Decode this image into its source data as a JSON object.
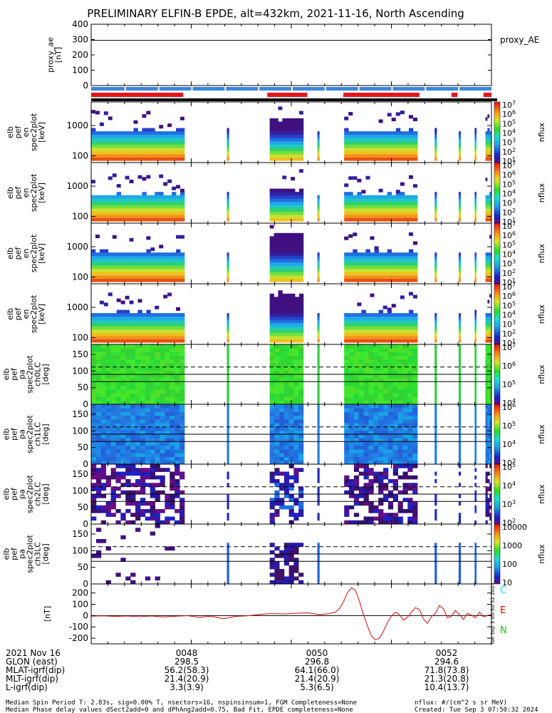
{
  "title": "PRELIMINARY ELFIN-B EPDE, alt=432km, 2021-11-16, North Ascending",
  "colors": {
    "red": "#e8141c",
    "blue": "#3a86d8",
    "black": "#000000",
    "trace": "#d42020"
  },
  "panels": [
    {
      "name": "proxy_ae",
      "ylabel": [
        "proxy_ae",
        "[nT]"
      ],
      "ticks": [
        "0",
        "100",
        "200",
        "300",
        "400"
      ],
      "right_label": "proxy_AE"
    },
    {
      "name": "en-1",
      "ylabel": [
        "elb",
        "pef",
        "en",
        "spec2plot",
        "[keV]"
      ],
      "ticks": [
        "100",
        "1000"
      ],
      "cb_label": "nflux",
      "cb_ticks": [
        "10^1",
        "10^2",
        "10^3",
        "10^4",
        "10^5",
        "10^6",
        "10^7"
      ]
    },
    {
      "name": "en-2",
      "ylabel": [
        "elb",
        "pef",
        "en",
        "spec2plot",
        "[keV]"
      ],
      "ticks": [
        "100",
        "1000"
      ],
      "cb_label": "nflux",
      "cb_ticks": [
        "10^1",
        "10^2",
        "10^3",
        "10^4",
        "10^5",
        "10^6",
        "10^7"
      ]
    },
    {
      "name": "en-3",
      "ylabel": [
        "elb",
        "pef",
        "en",
        "spec2plot",
        "[keV]"
      ],
      "ticks": [
        "100",
        "1000"
      ],
      "cb_label": "nflux",
      "cb_ticks": [
        "10^1",
        "10^2",
        "10^3",
        "10^4",
        "10^5",
        "10^6",
        "10^7"
      ]
    },
    {
      "name": "en-4",
      "ylabel": [
        "elb",
        "pef",
        "en",
        "spec2plot",
        "[keV]"
      ],
      "ticks": [
        "100",
        "1000"
      ],
      "cb_label": "nflux",
      "cb_ticks": [
        "10^1",
        "10^2",
        "10^3",
        "10^4",
        "10^5",
        "10^6",
        "10^7"
      ]
    },
    {
      "name": "pa-0",
      "ylabel": [
        "elb",
        "pef",
        "pa",
        "spec2plot",
        "ch0LC",
        "[deg]"
      ],
      "ticks": [
        "0",
        "50",
        "100",
        "150"
      ],
      "cb_label": "nflux",
      "cb_ticks": [
        "10^4",
        "10^5",
        "10^6",
        "10^7"
      ]
    },
    {
      "name": "pa-1",
      "ylabel": [
        "elb",
        "pef",
        "pa",
        "spec2plot",
        "ch1LC",
        "[deg]"
      ],
      "ticks": [
        "0",
        "50",
        "100",
        "150"
      ],
      "cb_label": "nflux",
      "cb_ticks": [
        "10^3",
        "10^4",
        "10^5",
        "10^6"
      ]
    },
    {
      "name": "pa-2",
      "ylabel": [
        "elb",
        "pef",
        "pa",
        "spec2plot",
        "ch2LC",
        "[deg]"
      ],
      "ticks": [
        "0",
        "50",
        "100",
        "150"
      ],
      "cb_label": "nflux",
      "cb_ticks": [
        "10^2",
        "10^3",
        "10^4",
        "10^5"
      ]
    },
    {
      "name": "pa-3",
      "ylabel": [
        "elb",
        "pef",
        "pa",
        "spec2plot",
        "ch3LC",
        "[deg]"
      ],
      "ticks": [
        "0",
        "50",
        "100",
        "150"
      ],
      "cb_label": "nflux",
      "cb_ticks": [
        "10",
        "100",
        "1000",
        "10000"
      ]
    },
    {
      "name": "mag",
      "ylabel": [
        "[nT]"
      ],
      "ticks": [
        "-200",
        "-100",
        "0",
        "100",
        "200"
      ],
      "side_letters": [
        "C",
        "E",
        "N"
      ],
      "side_colors": [
        "#00e5ff",
        "#e00000",
        "#00cc00"
      ],
      "stamp": "Tue Sep 3 00:50:32 2024"
    }
  ],
  "chart_data": {
    "type": "spectrogram-stack",
    "x_ticks": [
      "0048",
      "0050",
      "0052"
    ],
    "ephemeris": {
      "labels": [
        "2021 Nov 16",
        "GLON (east)",
        "MLAT-igrf(dip)",
        "MLT-igrf(dip)",
        "L-igrf(dip)"
      ],
      "columns": [
        [
          "0048",
          "298.5",
          "56.2(58.3)",
          "21.4(20.9)",
          "3.3(3.9)"
        ],
        [
          "0050",
          "296.8",
          "64.1(66.0)",
          "21.4(20.9)",
          "5.3(6.5)"
        ],
        [
          "0052",
          "294.6",
          "71.8(73.8)",
          "21.3(20.8)",
          "10.4(13.7)"
        ]
      ]
    },
    "proxy_ae_ylim": [
      0,
      400
    ],
    "proxy_ae_level": 295,
    "energy_ylim": [
      60,
      6000
    ],
    "pa_ylim": [
      0,
      180
    ],
    "pa_dashed": 112,
    "pa_solid": [
      68,
      90
    ],
    "mag_ylim": [
      -250,
      280
    ],
    "mag_trace": [
      [
        0,
        -5
      ],
      [
        0.03,
        -2
      ],
      [
        0.06,
        -8
      ],
      [
        0.09,
        -4
      ],
      [
        0.12,
        -10
      ],
      [
        0.15,
        -3
      ],
      [
        0.18,
        -12
      ],
      [
        0.21,
        -6
      ],
      [
        0.24,
        -1
      ],
      [
        0.27,
        -15
      ],
      [
        0.3,
        -5
      ],
      [
        0.33,
        -28
      ],
      [
        0.36,
        -8
      ],
      [
        0.39,
        -2
      ],
      [
        0.42,
        10
      ],
      [
        0.45,
        18
      ],
      [
        0.48,
        15
      ],
      [
        0.51,
        20
      ],
      [
        0.54,
        25
      ],
      [
        0.57,
        8
      ],
      [
        0.59,
        15
      ],
      [
        0.61,
        30
      ],
      [
        0.62,
        60
      ],
      [
        0.63,
        120
      ],
      [
        0.64,
        200
      ],
      [
        0.65,
        245
      ],
      [
        0.66,
        225
      ],
      [
        0.67,
        130
      ],
      [
        0.68,
        10
      ],
      [
        0.69,
        -90
      ],
      [
        0.7,
        -180
      ],
      [
        0.71,
        -215
      ],
      [
        0.72,
        -200
      ],
      [
        0.73,
        -140
      ],
      [
        0.74,
        -60
      ],
      [
        0.75,
        -5
      ],
      [
        0.76,
        30
      ],
      [
        0.77,
        10
      ],
      [
        0.78,
        -40
      ],
      [
        0.79,
        -15
      ],
      [
        0.8,
        30
      ],
      [
        0.81,
        70
      ],
      [
        0.82,
        55
      ],
      [
        0.83,
        -30
      ],
      [
        0.84,
        -70
      ],
      [
        0.85,
        -10
      ],
      [
        0.86,
        20
      ],
      [
        0.87,
        90
      ],
      [
        0.88,
        60
      ],
      [
        0.89,
        -20
      ],
      [
        0.9,
        -5
      ],
      [
        0.91,
        45
      ],
      [
        0.92,
        10
      ],
      [
        0.93,
        -35
      ],
      [
        0.94,
        20
      ],
      [
        0.95,
        5
      ],
      [
        0.96,
        -20
      ],
      [
        0.97,
        30
      ],
      [
        0.98,
        -10
      ],
      [
        1,
        10
      ]
    ],
    "red_segments": [
      [
        0,
        0.23
      ],
      [
        0.44,
        0.54
      ],
      [
        0.63,
        0.82
      ],
      [
        0.9,
        0.915
      ],
      [
        0.98,
        1
      ]
    ],
    "data_blocks": [
      {
        "x0": 0.0,
        "x1": 0.233,
        "kind": "main"
      },
      {
        "x0": 0.339,
        "x1": 0.344,
        "kind": "strip"
      },
      {
        "x0": 0.446,
        "x1": 0.53,
        "kind": "burst"
      },
      {
        "x0": 0.565,
        "x1": 0.57,
        "kind": "strip"
      },
      {
        "x0": 0.632,
        "x1": 0.815,
        "kind": "main"
      },
      {
        "x0": 0.858,
        "x1": 0.863,
        "kind": "strip"
      },
      {
        "x0": 0.918,
        "x1": 0.923,
        "kind": "strip"
      },
      {
        "x0": 0.958,
        "x1": 0.962,
        "kind": "strip"
      },
      {
        "x0": 0.985,
        "x1": 1.0,
        "kind": "main"
      }
    ]
  },
  "footer": {
    "line1_left": "Median Spin Period T: 2.83s, sig=0.00% T, nsectors=16, nspinsinsum=1, FGM Completeness=None",
    "line2_left": "Median Phase delay values dSect2add=0 and dPhAng2add=0.75, Bad Fit, EPDE completeness=None",
    "line1_right": "nflux: #/(cm^2 s sr MeV)",
    "line2_right": "Created: Tue Sep  3 07:50:32 2024"
  }
}
